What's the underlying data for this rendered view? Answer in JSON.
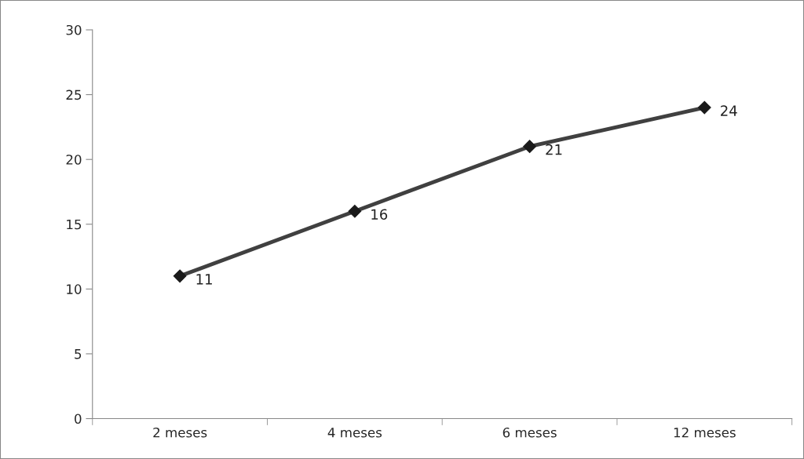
{
  "chart_data": {
    "type": "line",
    "categories": [
      "2 meses",
      "4 meses",
      "6 meses",
      "12 meses"
    ],
    "series": [
      {
        "color": "#404040",
        "values": [
          11,
          16,
          21,
          24
        ]
      }
    ],
    "ylim": [
      0,
      30
    ],
    "yticks": [
      0,
      5,
      10,
      15,
      20,
      25,
      30
    ],
    "marker": "diamond",
    "line_style": "solid",
    "data_labels": true,
    "grid": false,
    "legend": false
  }
}
